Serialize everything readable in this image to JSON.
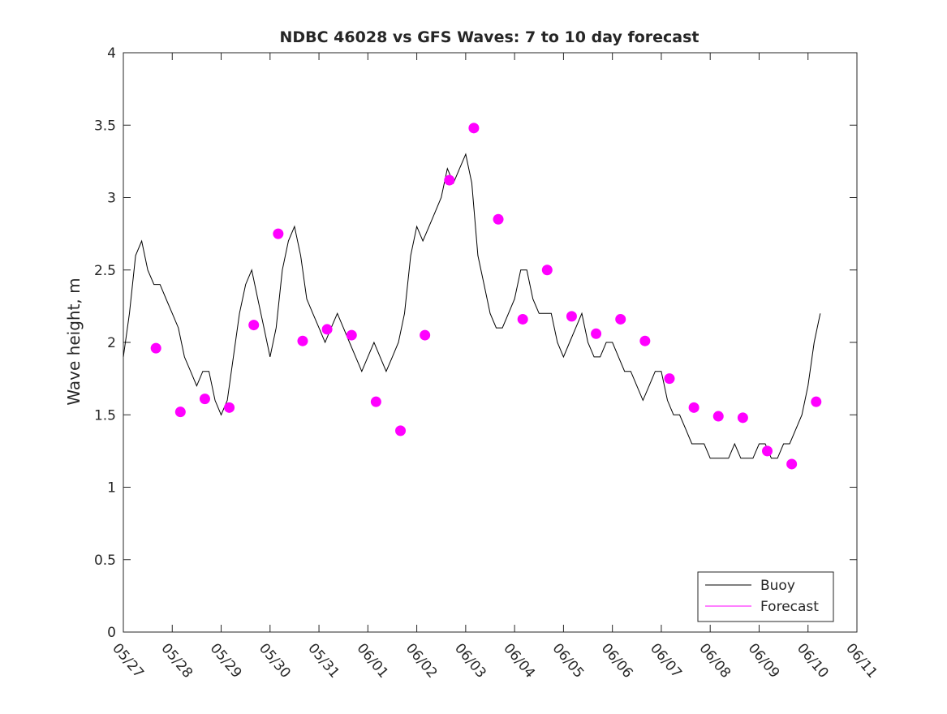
{
  "chart_data": {
    "type": "line",
    "title": "NDBC 46028 vs GFS Waves: 7 to 10 day forecast",
    "xlabel": "",
    "ylabel": "Wave height, m",
    "xlim": [
      "05/27",
      "06/11"
    ],
    "ylim": [
      0,
      4
    ],
    "x_tick_labels": [
      "05/27",
      "05/28",
      "05/29",
      "05/30",
      "05/31",
      "06/01",
      "06/02",
      "06/03",
      "06/04",
      "06/05",
      "06/06",
      "06/07",
      "06/08",
      "06/09",
      "06/10",
      "06/11"
    ],
    "y_tick_labels": [
      "0",
      "0.5",
      "1",
      "1.5",
      "2",
      "2.5",
      "3",
      "3.5",
      "4"
    ],
    "y_ticks": [
      0,
      0.5,
      1,
      1.5,
      2,
      2.5,
      3,
      3.5,
      4
    ],
    "grid": false,
    "legend_position": "bottom-right",
    "legend": [
      "Buoy",
      "Forecast"
    ],
    "colors": {
      "buoy": "#000000",
      "forecast": "#ff00ff"
    },
    "series": [
      {
        "name": "Buoy",
        "x": [
          "05/27 00:00",
          "05/27 03:00",
          "05/27 06:00",
          "05/27 09:00",
          "05/27 12:00",
          "05/27 15:00",
          "05/27 18:00",
          "05/27 21:00",
          "05/28 00:00",
          "05/28 03:00",
          "05/28 06:00",
          "05/28 09:00",
          "05/28 12:00",
          "05/28 15:00",
          "05/28 18:00",
          "05/28 21:00",
          "05/29 00:00",
          "05/29 03:00",
          "05/29 06:00",
          "05/29 09:00",
          "05/29 12:00",
          "05/29 15:00",
          "05/29 18:00",
          "05/29 21:00",
          "05/30 00:00",
          "05/30 03:00",
          "05/30 06:00",
          "05/30 09:00",
          "05/30 12:00",
          "05/30 15:00",
          "05/30 18:00",
          "05/30 21:00",
          "05/31 00:00",
          "05/31 03:00",
          "05/31 06:00",
          "05/31 09:00",
          "05/31 12:00",
          "05/31 15:00",
          "05/31 18:00",
          "05/31 21:00",
          "06/01 00:00",
          "06/01 03:00",
          "06/01 06:00",
          "06/01 09:00",
          "06/01 12:00",
          "06/01 15:00",
          "06/01 18:00",
          "06/01 21:00",
          "06/02 00:00",
          "06/02 03:00",
          "06/02 06:00",
          "06/02 09:00",
          "06/02 12:00",
          "06/02 15:00",
          "06/02 18:00",
          "06/02 21:00",
          "06/03 00:00",
          "06/03 03:00",
          "06/03 06:00",
          "06/03 09:00",
          "06/03 12:00",
          "06/03 15:00",
          "06/03 18:00",
          "06/03 21:00",
          "06/04 00:00",
          "06/04 03:00",
          "06/04 06:00",
          "06/04 09:00",
          "06/04 12:00",
          "06/04 15:00",
          "06/04 18:00",
          "06/04 21:00",
          "06/05 00:00",
          "06/05 03:00",
          "06/05 06:00",
          "06/05 09:00",
          "06/05 12:00",
          "06/05 15:00",
          "06/05 18:00",
          "06/05 21:00",
          "06/06 00:00",
          "06/06 03:00",
          "06/06 06:00",
          "06/06 09:00",
          "06/06 12:00",
          "06/06 15:00",
          "06/06 18:00",
          "06/06 21:00",
          "06/07 00:00",
          "06/07 03:00",
          "06/07 06:00",
          "06/07 09:00",
          "06/07 12:00",
          "06/07 15:00",
          "06/07 18:00",
          "06/07 21:00",
          "06/08 00:00",
          "06/08 03:00",
          "06/08 06:00",
          "06/08 09:00",
          "06/08 12:00",
          "06/08 15:00",
          "06/08 18:00",
          "06/08 21:00",
          "06/09 00:00",
          "06/09 03:00",
          "06/09 06:00",
          "06/09 09:00",
          "06/09 12:00",
          "06/09 15:00",
          "06/09 18:00",
          "06/09 21:00",
          "06/10 00:00",
          "06/10 03:00",
          "06/10 06:00"
        ],
        "y": [
          1.9,
          2.2,
          2.6,
          2.7,
          2.5,
          2.4,
          2.4,
          2.3,
          2.2,
          2.1,
          1.9,
          1.8,
          1.7,
          1.8,
          1.8,
          1.6,
          1.5,
          1.6,
          1.9,
          2.2,
          2.4,
          2.5,
          2.3,
          2.1,
          1.9,
          2.1,
          2.5,
          2.7,
          2.8,
          2.6,
          2.3,
          2.2,
          2.1,
          2.0,
          2.1,
          2.2,
          2.1,
          2.0,
          1.9,
          1.8,
          1.9,
          2.0,
          1.9,
          1.8,
          1.9,
          2.0,
          2.2,
          2.6,
          2.8,
          2.7,
          2.8,
          2.9,
          3.0,
          3.2,
          3.1,
          3.2,
          3.3,
          3.1,
          2.6,
          2.4,
          2.2,
          2.1,
          2.1,
          2.2,
          2.3,
          2.5,
          2.5,
          2.3,
          2.2,
          2.2,
          2.2,
          2.0,
          1.9,
          2.0,
          2.1,
          2.2,
          2.0,
          1.9,
          1.9,
          2.0,
          2.0,
          1.9,
          1.8,
          1.8,
          1.7,
          1.6,
          1.7,
          1.8,
          1.8,
          1.6,
          1.5,
          1.5,
          1.4,
          1.3,
          1.3,
          1.3,
          1.2,
          1.2,
          1.2,
          1.2,
          1.3,
          1.2,
          1.2,
          1.2,
          1.3,
          1.3,
          1.2,
          1.2,
          1.3,
          1.3,
          1.4,
          1.5,
          1.7,
          2.0,
          2.2
        ]
      },
      {
        "name": "Forecast",
        "x": [
          "05/27 16:00",
          "05/28 04:00",
          "05/28 16:00",
          "05/29 04:00",
          "05/29 16:00",
          "05/30 04:00",
          "05/30 16:00",
          "05/31 04:00",
          "05/31 16:00",
          "06/01 04:00",
          "06/01 16:00",
          "06/02 04:00",
          "06/02 16:00",
          "06/03 04:00",
          "06/03 16:00",
          "06/04 04:00",
          "06/04 16:00",
          "06/05 04:00",
          "06/05 16:00",
          "06/06 04:00",
          "06/06 16:00",
          "06/07 04:00",
          "06/07 16:00",
          "06/08 04:00",
          "06/08 16:00",
          "06/09 04:00",
          "06/09 16:00",
          "06/10 04:00"
        ],
        "y": [
          1.96,
          1.52,
          1.61,
          1.55,
          2.12,
          2.75,
          2.01,
          2.09,
          2.05,
          1.59,
          1.39,
          2.05,
          3.12,
          3.48,
          2.85,
          2.16,
          2.5,
          2.18,
          2.06,
          2.16,
          2.01,
          1.75,
          1.55,
          1.49,
          1.48,
          1.25,
          1.16,
          1.59
        ]
      }
    ]
  }
}
